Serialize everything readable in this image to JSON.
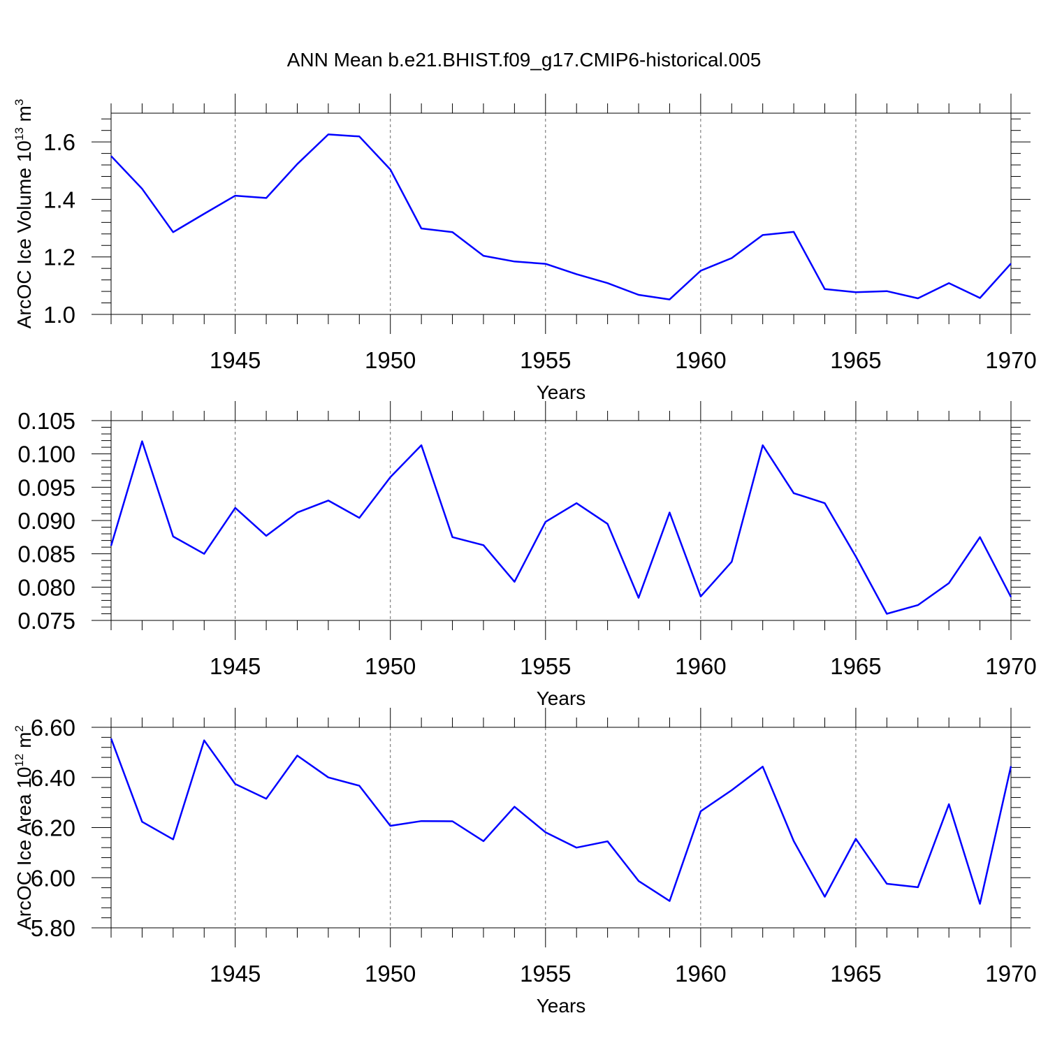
{
  "title": "ANN Mean b.e21.BHIST.f09_g17.CMIP6-historical.005",
  "line_color": "#0000ff",
  "chart_data": [
    {
      "type": "line",
      "xlabel": "Years",
      "ylabel": "ArcOC Ice Volume 10",
      "ylabel_exp": "13",
      "ylabel_unit": "m",
      "ylabel_unit_exp": "3",
      "xlim": [
        1941,
        1970
      ],
      "ylim": [
        1.0,
        1.7
      ],
      "yticks": [
        "1.0",
        "1.2",
        "1.4",
        "1.6"
      ],
      "ytick_values": [
        1.0,
        1.2,
        1.4,
        1.6
      ],
      "xticks": [
        "1945",
        "1950",
        "1955",
        "1960",
        "1965",
        "1970"
      ],
      "xtick_values": [
        1945,
        1950,
        1955,
        1960,
        1965,
        1970
      ],
      "x": [
        1941,
        1942,
        1943,
        1944,
        1945,
        1946,
        1947,
        1948,
        1949,
        1950,
        1951,
        1952,
        1953,
        1954,
        1955,
        1956,
        1957,
        1958,
        1959,
        1960,
        1961,
        1962,
        1963,
        1964,
        1965,
        1966,
        1967,
        1968,
        1969,
        1970
      ],
      "values": [
        1.551,
        1.437,
        1.286,
        1.35,
        1.413,
        1.405,
        1.523,
        1.626,
        1.619,
        1.504,
        1.299,
        1.286,
        1.204,
        1.184,
        1.176,
        1.14,
        1.109,
        1.068,
        1.052,
        1.152,
        1.196,
        1.276,
        1.287,
        1.088,
        1.077,
        1.081,
        1.056,
        1.109,
        1.057,
        1.177
      ]
    },
    {
      "type": "line",
      "xlabel": "Years",
      "ylabel": "",
      "xlim": [
        1941,
        1970
      ],
      "ylim": [
        0.075,
        0.105
      ],
      "yticks": [
        "0.075",
        "0.080",
        "0.085",
        "0.090",
        "0.095",
        "0.100",
        "0.105"
      ],
      "ytick_values": [
        0.075,
        0.08,
        0.085,
        0.09,
        0.095,
        0.1,
        0.105
      ],
      "xticks": [
        "1945",
        "1950",
        "1955",
        "1960",
        "1965",
        "1970"
      ],
      "xtick_values": [
        1945,
        1950,
        1955,
        1960,
        1965,
        1970
      ],
      "x": [
        1941,
        1942,
        1943,
        1944,
        1945,
        1946,
        1947,
        1948,
        1949,
        1950,
        1951,
        1952,
        1953,
        1954,
        1955,
        1956,
        1957,
        1958,
        1959,
        1960,
        1961,
        1962,
        1963,
        1964,
        1965,
        1966,
        1967,
        1968,
        1969,
        1970
      ],
      "values": [
        0.0862,
        0.1019,
        0.0876,
        0.085,
        0.0919,
        0.0877,
        0.0912,
        0.093,
        0.0904,
        0.0965,
        0.1013,
        0.0875,
        0.0863,
        0.0808,
        0.0898,
        0.0926,
        0.0895,
        0.0784,
        0.0912,
        0.0786,
        0.0838,
        0.1013,
        0.0941,
        0.0926,
        0.0846,
        0.076,
        0.0773,
        0.0806,
        0.0875,
        0.0785
      ]
    },
    {
      "type": "line",
      "xlabel": "Years",
      "ylabel": "ArcOC Ice Area 10",
      "ylabel_exp": "12",
      "ylabel_unit": "m",
      "ylabel_unit_exp": "2",
      "xlim": [
        1941,
        1970
      ],
      "ylim": [
        5.8,
        6.6
      ],
      "yticks": [
        "5.80",
        "6.00",
        "6.20",
        "6.40",
        "6.60"
      ],
      "ytick_values": [
        5.8,
        6.0,
        6.2,
        6.4,
        6.6
      ],
      "xticks": [
        "1945",
        "1950",
        "1955",
        "1960",
        "1965",
        "1970"
      ],
      "xtick_values": [
        1945,
        1950,
        1955,
        1960,
        1965,
        1970
      ],
      "x": [
        1941,
        1942,
        1943,
        1944,
        1945,
        1946,
        1947,
        1948,
        1949,
        1950,
        1951,
        1952,
        1953,
        1954,
        1955,
        1956,
        1957,
        1958,
        1959,
        1960,
        1961,
        1962,
        1963,
        1964,
        1965,
        1966,
        1967,
        1968,
        1969,
        1970
      ],
      "values": [
        6.555,
        6.223,
        6.153,
        6.548,
        6.374,
        6.315,
        6.487,
        6.4,
        6.367,
        6.207,
        6.226,
        6.225,
        6.146,
        6.283,
        6.181,
        6.12,
        6.145,
        5.987,
        5.907,
        6.265,
        6.349,
        6.443,
        6.146,
        5.924,
        6.155,
        5.976,
        5.962,
        6.293,
        5.896,
        6.445
      ]
    }
  ]
}
